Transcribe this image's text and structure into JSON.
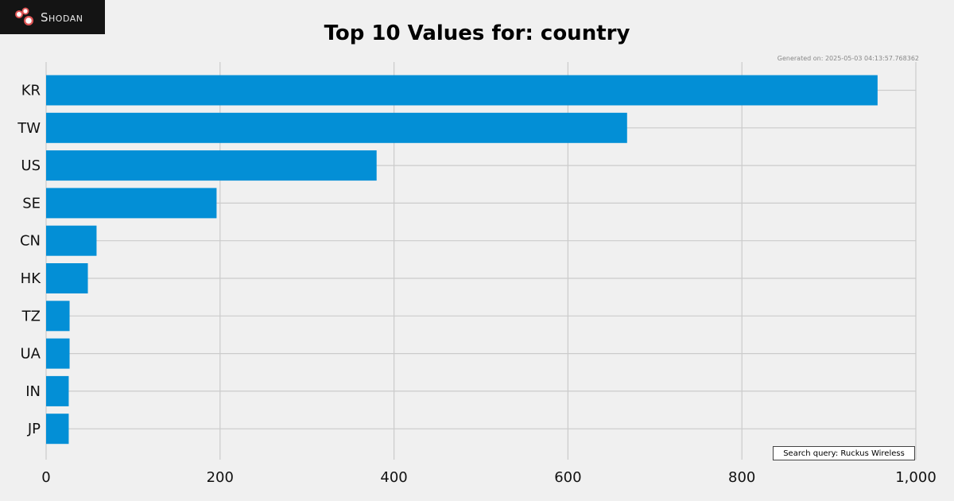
{
  "logo": {
    "text": "Shodan",
    "icon": "shodan-logo-icon"
  },
  "generated_text": "Generated on: 2025-05-03 04:13:57.768362",
  "query_text": "Search query: Ruckus Wireless",
  "colors": {
    "bar": "#038fd6",
    "background": "#f0f0f0",
    "grid": "#cbcbcb"
  },
  "chart_data": {
    "type": "bar",
    "orientation": "horizontal",
    "title": "Top 10 Values for: country",
    "xlabel": "",
    "ylabel": "",
    "categories": [
      "KR",
      "TW",
      "US",
      "SE",
      "CN",
      "HK",
      "TZ",
      "UA",
      "IN",
      "JP"
    ],
    "values": [
      956,
      668,
      380,
      196,
      58,
      48,
      27,
      27,
      26,
      26
    ],
    "xlim": [
      0,
      1000
    ],
    "xticks": [
      0,
      200,
      400,
      600,
      800,
      1000
    ],
    "xtick_labels": [
      "0",
      "200",
      "400",
      "600",
      "800",
      "1,000"
    ],
    "grid": true
  }
}
